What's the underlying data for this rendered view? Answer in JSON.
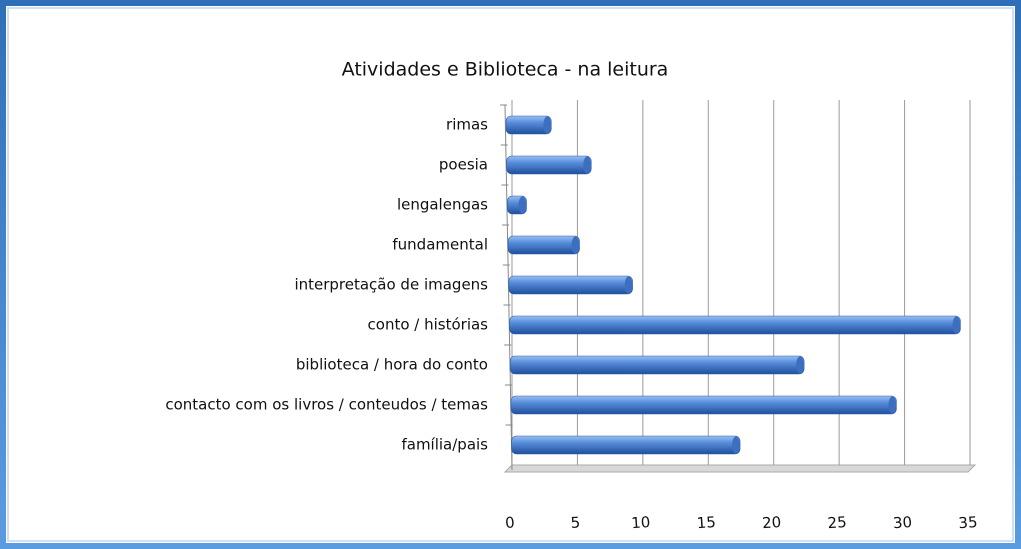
{
  "chart_data": {
    "type": "bar",
    "orientation": "horizontal",
    "title": "Atividades e Biblioteca - na leitura",
    "categories": [
      "rimas",
      "poesia",
      "lengalengas",
      "fundamental",
      "interpretação de imagens",
      "conto / histórias",
      "biblioteca / hora do conto",
      "contacto com os livros / conteudos / temas",
      "família/pais"
    ],
    "values": [
      3,
      6,
      1,
      5,
      9,
      34,
      22,
      29,
      17
    ],
    "color": "#4f86d6",
    "xlim": [
      0,
      35
    ],
    "xticks": [
      0,
      5,
      10,
      15,
      20,
      25,
      30,
      35
    ],
    "grid": true
  }
}
